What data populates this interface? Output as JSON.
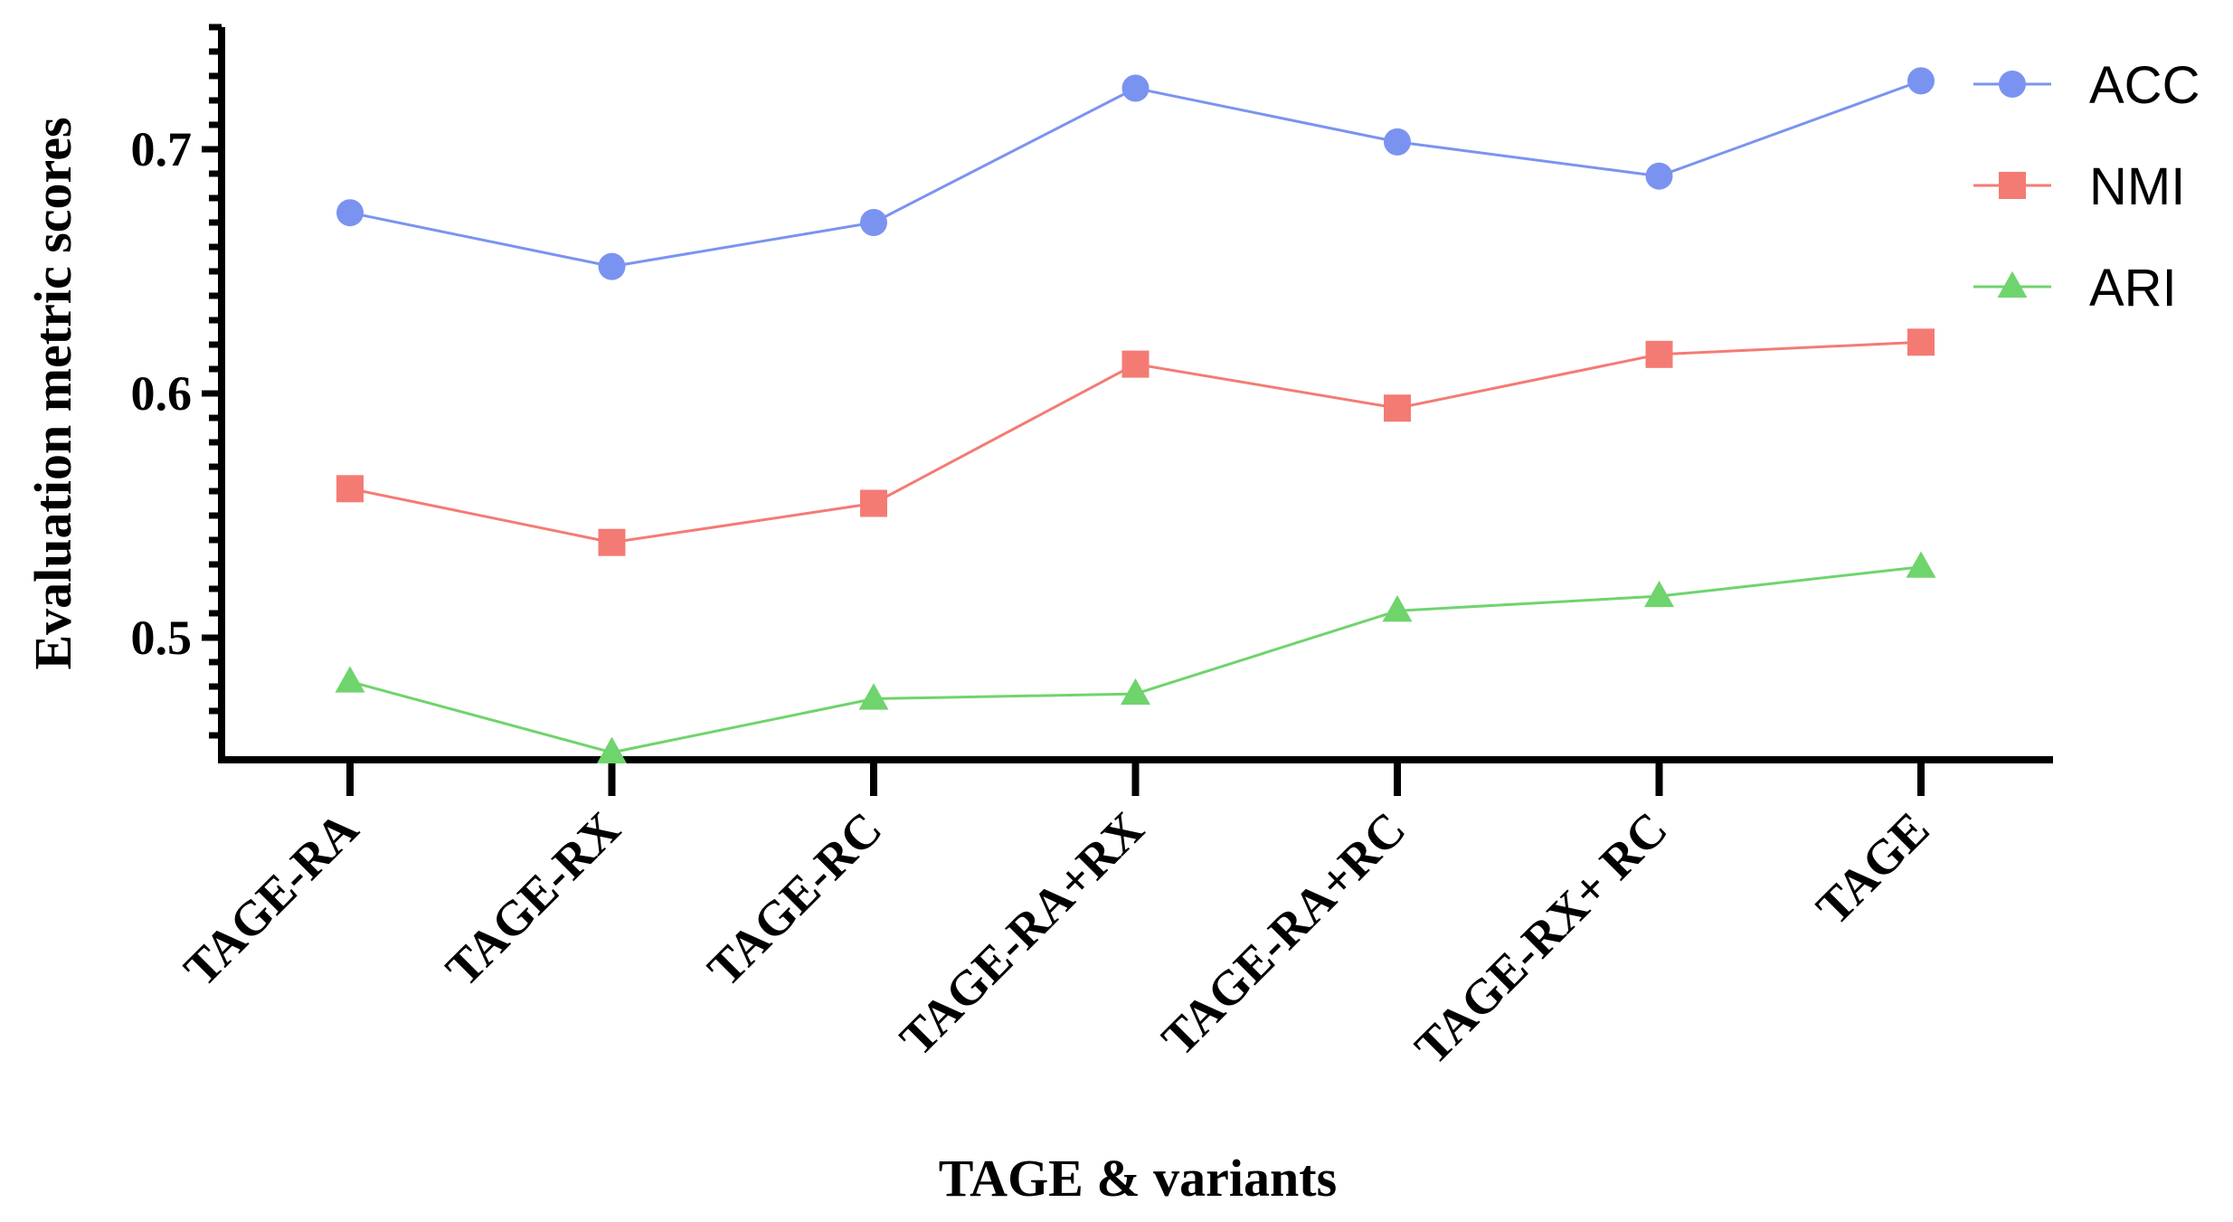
{
  "chart_data": {
    "type": "line",
    "title": "",
    "xlabel": "TAGE & variants",
    "ylabel": "Evaluation metric scores",
    "categories": [
      "TAGE-RA",
      "TAGE-RX",
      "TAGE-RC",
      "TAGE-RA+RX",
      "TAGE-RA+RC",
      "TAGE-RX+ RC",
      "TAGE"
    ],
    "ylim": [
      0.45,
      0.75
    ],
    "yticks": [
      0.5,
      0.6,
      0.7
    ],
    "ytick_labels": [
      "0.5",
      "0.6",
      "0.7"
    ],
    "grid": false,
    "legend_position": "top-right",
    "series": [
      {
        "name": "ACC",
        "marker": "circle",
        "color": "#7B93F0",
        "values": [
          0.674,
          0.652,
          0.67,
          0.725,
          0.703,
          0.689,
          0.728
        ]
      },
      {
        "name": "NMI",
        "marker": "square",
        "color": "#F47B74",
        "values": [
          0.561,
          0.539,
          0.555,
          0.612,
          0.594,
          0.616,
          0.621
        ]
      },
      {
        "name": "ARI",
        "marker": "triangle",
        "color": "#6FD46C",
        "values": [
          0.482,
          0.453,
          0.475,
          0.477,
          0.511,
          0.517,
          0.529
        ]
      }
    ]
  }
}
